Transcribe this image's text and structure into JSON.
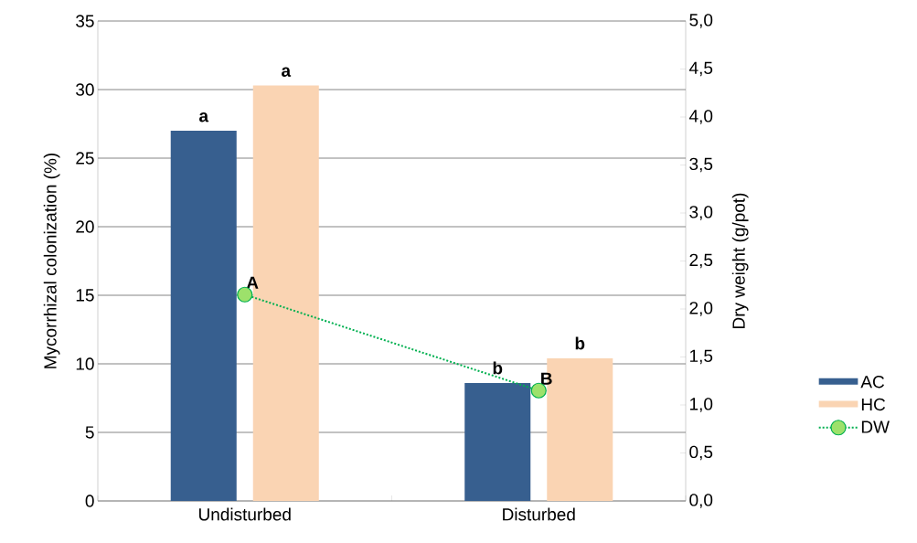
{
  "chart_data": {
    "type": "bar",
    "categories": [
      "Undisturbed",
      "Disturbed"
    ],
    "ylabel": "Mycorrhizal colonization (%)",
    "y2label": "Dry weight (g/pot)",
    "series": [
      {
        "name": "AC",
        "color": "#375f8f",
        "values": [
          27.0,
          8.6
        ],
        "value_labels": [
          "a",
          "b"
        ]
      },
      {
        "name": "HC",
        "color": "#fad4b3",
        "values": [
          30.3,
          10.4
        ],
        "value_labels": [
          "a",
          "b"
        ]
      },
      {
        "name": "DW",
        "type": "line",
        "axis": "y2",
        "color": "#00b050",
        "marker": "circle",
        "line_style": "dotted",
        "values": [
          2.15,
          1.15
        ],
        "value_labels": [
          "A",
          "B"
        ]
      }
    ],
    "ylim": [
      0,
      35
    ],
    "yticks": [
      0,
      5,
      10,
      15,
      20,
      25,
      30,
      35
    ],
    "y2lim": [
      0,
      5
    ],
    "y2ticks": [
      {
        "value": 0,
        "label": "0,0"
      },
      {
        "value": 0.5,
        "label": "0,5"
      },
      {
        "value": 1,
        "label": "1,0"
      },
      {
        "value": 1.5,
        "label": "1,5"
      },
      {
        "value": 2,
        "label": "2,0"
      },
      {
        "value": 2.5,
        "label": "2,5"
      },
      {
        "value": 3,
        "label": "3,0"
      },
      {
        "value": 3.5,
        "label": "3,5"
      },
      {
        "value": 4,
        "label": "4,0"
      },
      {
        "value": 4.5,
        "label": "4,5"
      },
      {
        "value": 5,
        "label": "5,0"
      }
    ],
    "grid": "y",
    "legend": "right"
  }
}
